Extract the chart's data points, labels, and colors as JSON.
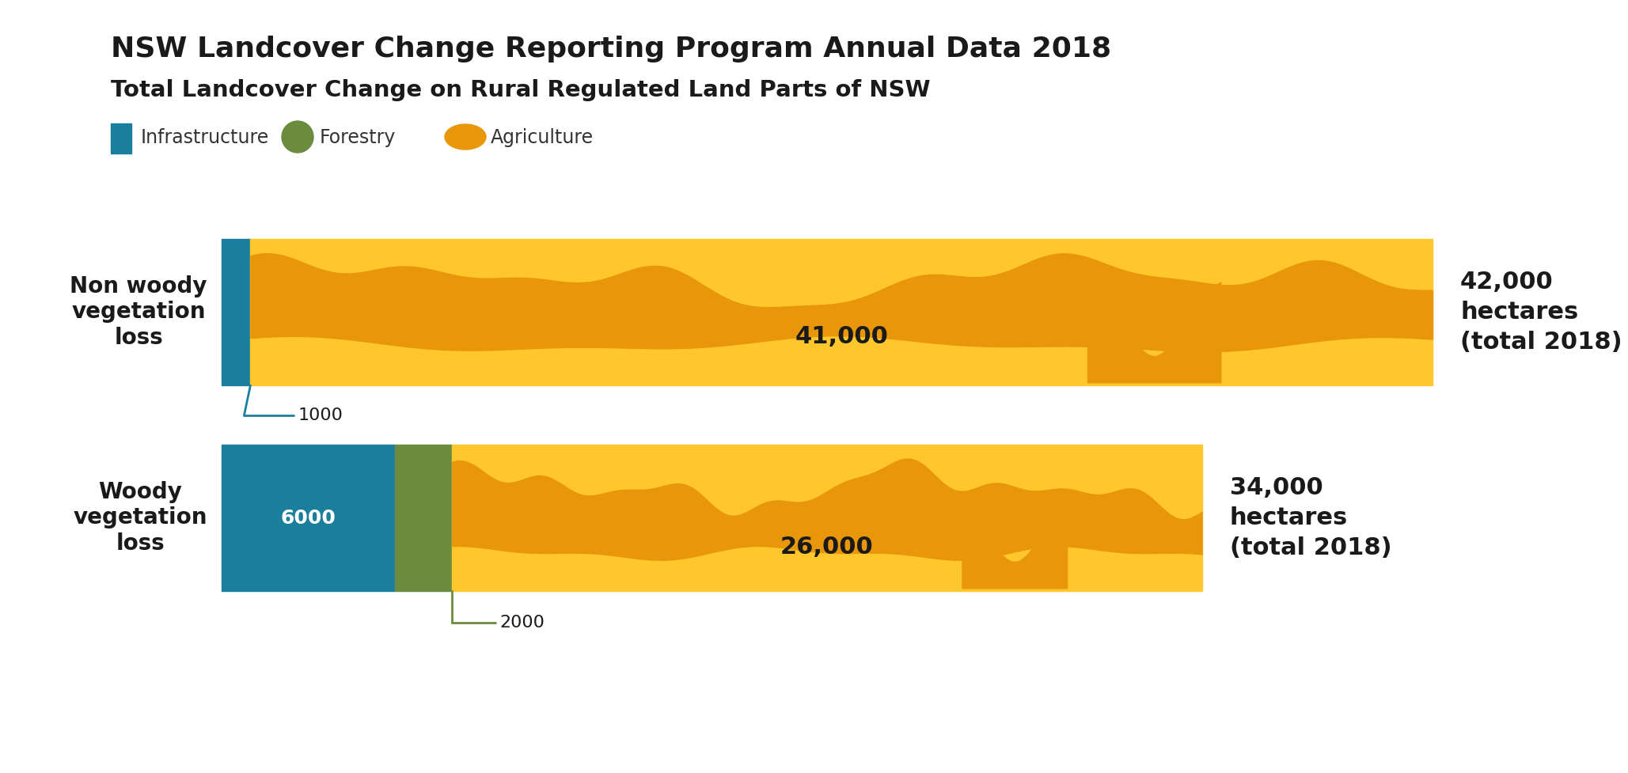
{
  "title_line1": "NSW Landcover Change Reporting Program Annual Data 2018",
  "title_line2": "Total Landcover Change on Rural Regulated Land Parts of NSW",
  "bg_color": "#ffffff",
  "bar1_label": "Non woody\nvegetation\nloss",
  "bar2_label": "Woody\nvegetation\nloss",
  "bar1_total_label": "42,000\nhectares\n(total 2018)",
  "bar2_total_label": "34,000\nhectares\n(total 2018)",
  "bar1_infra_value": 1000,
  "bar1_agri_value": 41000,
  "bar2_infra_value": 6000,
  "bar2_forestry_value": 2000,
  "bar2_agri_value": 26000,
  "bar1_infra_label": "1000",
  "bar1_agri_label": "41,000",
  "bar2_infra_label": "6000",
  "bar2_forestry_label": "2000",
  "bar2_agri_label": "26,000",
  "color_infra": "#1a7f9c",
  "color_forestry": "#6b8c3e",
  "color_agri_bg": "#ffc72c",
  "color_agri_wave": "#e8960a",
  "legend_infra": "Infrastructure",
  "legend_forestry": "Forestry",
  "legend_agri": "Agriculture",
  "total_bar1": 42000,
  "total_bar2": 34000
}
